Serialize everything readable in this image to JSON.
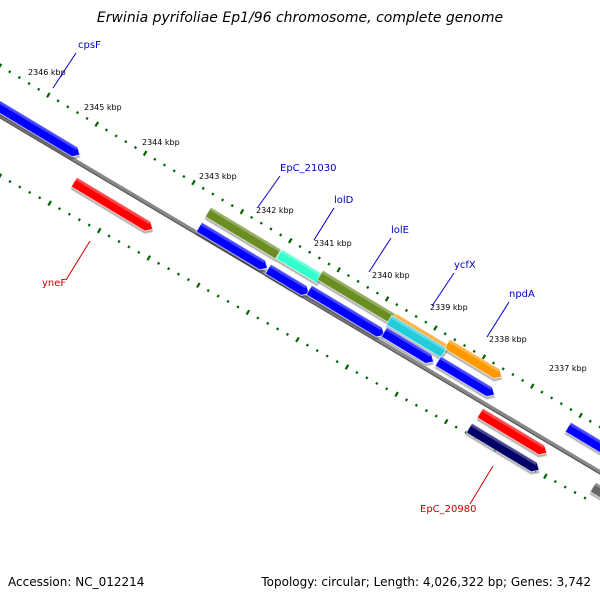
{
  "title": "Erwinia pyrifoliae Ep1/96 chromosome, complete genome",
  "footer": {
    "accession": "Accession: NC_012214",
    "summary": "Topology: circular; Length: 4,026,322 bp; Genes: 3,742"
  },
  "scale_labels": [
    "2346 kbp",
    "2345 kbp",
    "2344 kbp",
    "2343 kbp",
    "2342 kbp",
    "2341 kbp",
    "2340 kbp",
    "2339 kbp",
    "2338 kbp",
    "2337 kbp"
  ],
  "gene_labels": [
    {
      "text": "cpsF",
      "color": "#0000cc"
    },
    {
      "text": "yneF",
      "color": "#cc0000"
    },
    {
      "text": "EpC_21030",
      "color": "#0000cc"
    },
    {
      "text": "lolD",
      "color": "#0000cc"
    },
    {
      "text": "lolE",
      "color": "#0000cc"
    },
    {
      "text": "ycfX",
      "color": "#0000cc"
    },
    {
      "text": "npdA",
      "color": "#0000cc"
    },
    {
      "text": "EpC_20980",
      "color": "#cc0000"
    }
  ],
  "colors": {
    "forward_gene": "#0000ff",
    "reverse_gene": "#ff0000",
    "dark_gene": "#000066",
    "backbone": "#888888",
    "tick": "#006600",
    "olive_feature": "#6b8e23",
    "aqua_feature": "#33ffcc",
    "orange_feature": "#ff9900",
    "cyan_feature": "#22ccdd"
  }
}
